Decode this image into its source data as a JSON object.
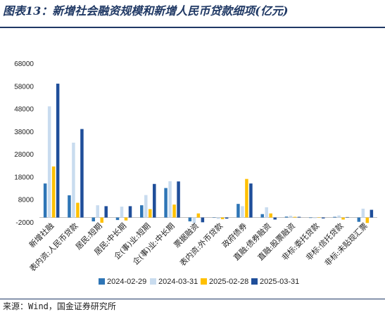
{
  "title": "图表13：新增社会融资规模和新增人民币贷款细项(亿元)",
  "source": "来源：Wind，国金证券研究所",
  "chart_data": {
    "type": "bar",
    "yticks": [
      "68000",
      "58000",
      "48000",
      "38000",
      "28000",
      "18000",
      "8000",
      "-2000"
    ],
    "ylim": [
      -2000,
      68000
    ],
    "categories": [
      "新增社融",
      "表内资:人民币贷款",
      "居民:短期",
      "居民:中长期",
      "企(事)业:短期",
      "企(事)业:中长期",
      "票据融资",
      "表内资:外币贷款",
      "政府债券",
      "直融:债券融资",
      "直融:股票融资",
      "非标:委托贷款",
      "非标:信托贷款",
      "非标:未贴现汇票"
    ],
    "series": [
      {
        "name": "2024-02-29",
        "color": "#2e75b6",
        "values": [
          15000,
          9800,
          -1700,
          -1100,
          5400,
          13000,
          -1700,
          -100,
          6000,
          1500,
          400,
          -200,
          300,
          -1900
        ]
      },
      {
        "name": "2024-03-31",
        "color": "#c9dcef",
        "values": [
          49000,
          33000,
          5400,
          4800,
          9900,
          16000,
          -2500,
          -600,
          5000,
          4500,
          800,
          -300,
          900,
          3900
        ]
      },
      {
        "name": "2025-02-28",
        "color": "#ffc000",
        "values": [
          22500,
          6500,
          -2300,
          -1300,
          3700,
          5700,
          1800,
          -700,
          17000,
          1800,
          300,
          -100,
          -900,
          -2400
        ]
      },
      {
        "name": "2025-03-31",
        "color": "#1f4e9a",
        "values": [
          59000,
          39000,
          5000,
          5000,
          14800,
          15900,
          -2100,
          -500,
          15000,
          -900,
          300,
          -400,
          200,
          3400
        ]
      }
    ]
  }
}
